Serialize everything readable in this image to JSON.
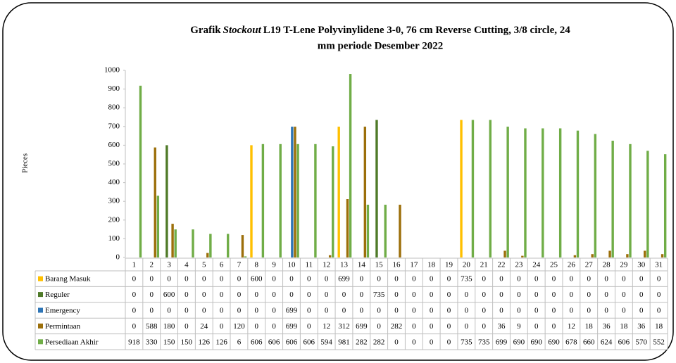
{
  "chart_data": {
    "type": "bar",
    "title": [
      "Grafik",
      "Stockout",
      "L19 T-Lene Polyvinylidene 3-0, 76 cm Reverse Cutting, 3/8 circle, 24",
      "mm periode Desember 2022"
    ],
    "y_label": "Pieces",
    "categories": [
      "1",
      "2",
      "3",
      "4",
      "5",
      "6",
      "7",
      "8",
      "9",
      "10",
      "11",
      "12",
      "13",
      "14",
      "15",
      "16",
      "17",
      "18",
      "19",
      "20",
      "21",
      "22",
      "23",
      "24",
      "25",
      "26",
      "27",
      "28",
      "29",
      "30",
      "31"
    ],
    "series": [
      {
        "name": "Barang Masuk",
        "color": "#ffc000",
        "values": [
          0,
          0,
          0,
          0,
          0,
          0,
          0,
          600,
          0,
          0,
          0,
          0,
          699,
          0,
          0,
          0,
          0,
          0,
          0,
          735,
          0,
          0,
          0,
          0,
          0,
          0,
          0,
          0,
          0,
          0,
          0
        ]
      },
      {
        "name": "Reguler",
        "color": "#4f7a28",
        "values": [
          0,
          0,
          600,
          0,
          0,
          0,
          0,
          0,
          0,
          0,
          0,
          0,
          0,
          0,
          735,
          0,
          0,
          0,
          0,
          0,
          0,
          0,
          0,
          0,
          0,
          0,
          0,
          0,
          0,
          0,
          0
        ]
      },
      {
        "name": "Emergency",
        "color": "#2e75b6",
        "values": [
          0,
          0,
          0,
          0,
          0,
          0,
          0,
          0,
          0,
          699,
          0,
          0,
          0,
          0,
          0,
          0,
          0,
          0,
          0,
          0,
          0,
          0,
          0,
          0,
          0,
          0,
          0,
          0,
          0,
          0,
          0
        ]
      },
      {
        "name": "Permintaan",
        "color": "#9c6f0a",
        "values": [
          0,
          588,
          180,
          0,
          24,
          0,
          120,
          0,
          0,
          699,
          0,
          12,
          312,
          699,
          0,
          282,
          0,
          0,
          0,
          0,
          0,
          36,
          9,
          0,
          0,
          12,
          18,
          36,
          18,
          36,
          18
        ]
      },
      {
        "name": "Persediaan Akhir",
        "color": "#70ad47",
        "values": [
          918,
          330,
          150,
          150,
          126,
          126,
          6,
          606,
          606,
          606,
          606,
          594,
          981,
          282,
          282,
          0,
          0,
          0,
          0,
          735,
          735,
          699,
          690,
          690,
          690,
          678,
          660,
          624,
          606,
          570,
          552
        ]
      }
    ],
    "ylim": [
      0,
      1000
    ],
    "yticks": [
      0,
      100,
      200,
      300,
      400,
      500,
      600,
      700,
      800,
      900,
      1000
    ],
    "grid": false
  }
}
